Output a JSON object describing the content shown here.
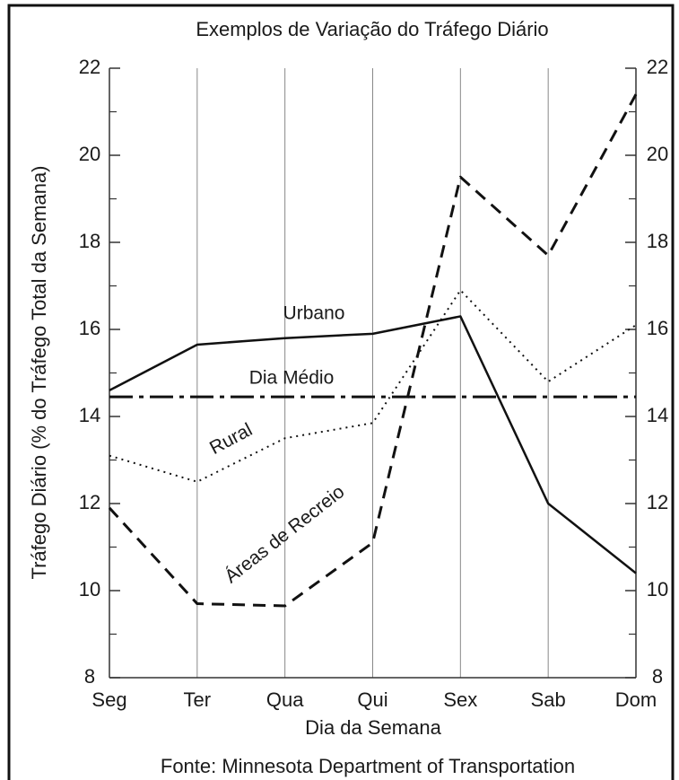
{
  "chart_data": {
    "type": "line",
    "title": "Exemplos de Variação do Tráfego Diário",
    "xlabel": "Dia da Semana",
    "ylabel": "Tráfego Diário (% do Tráfego Total da Semana)",
    "source": "Fonte: Minnesota Department of Transportation",
    "categories": [
      "Seg",
      "Ter",
      "Qua",
      "Qui",
      "Sex",
      "Sab",
      "Dom"
    ],
    "ylim": [
      8,
      22
    ],
    "yticks": [
      8,
      10,
      12,
      14,
      16,
      18,
      20,
      22
    ],
    "minor_yticks": [
      9,
      11,
      13,
      15,
      17,
      19,
      21
    ],
    "grid": true,
    "series": [
      {
        "name": "Urbano",
        "color": "#111111",
        "dash": "solid",
        "values": [
          14.6,
          15.65,
          15.8,
          15.9,
          16.3,
          12.0,
          10.4
        ]
      },
      {
        "name": "Dia Médio",
        "color": "#111111",
        "dash": "dashdot",
        "values": [
          14.45,
          14.45,
          14.45,
          14.45,
          14.45,
          14.45,
          14.45
        ]
      },
      {
        "name": "Rural",
        "color": "#111111",
        "dash": "dotted",
        "values": [
          13.1,
          12.5,
          13.5,
          13.85,
          16.9,
          14.8,
          16.1
        ]
      },
      {
        "name": "Áreas de Recreio",
        "color": "#111111",
        "dash": "dashed",
        "values": [
          11.9,
          9.7,
          9.65,
          11.1,
          19.5,
          17.7,
          21.4
        ]
      }
    ]
  }
}
